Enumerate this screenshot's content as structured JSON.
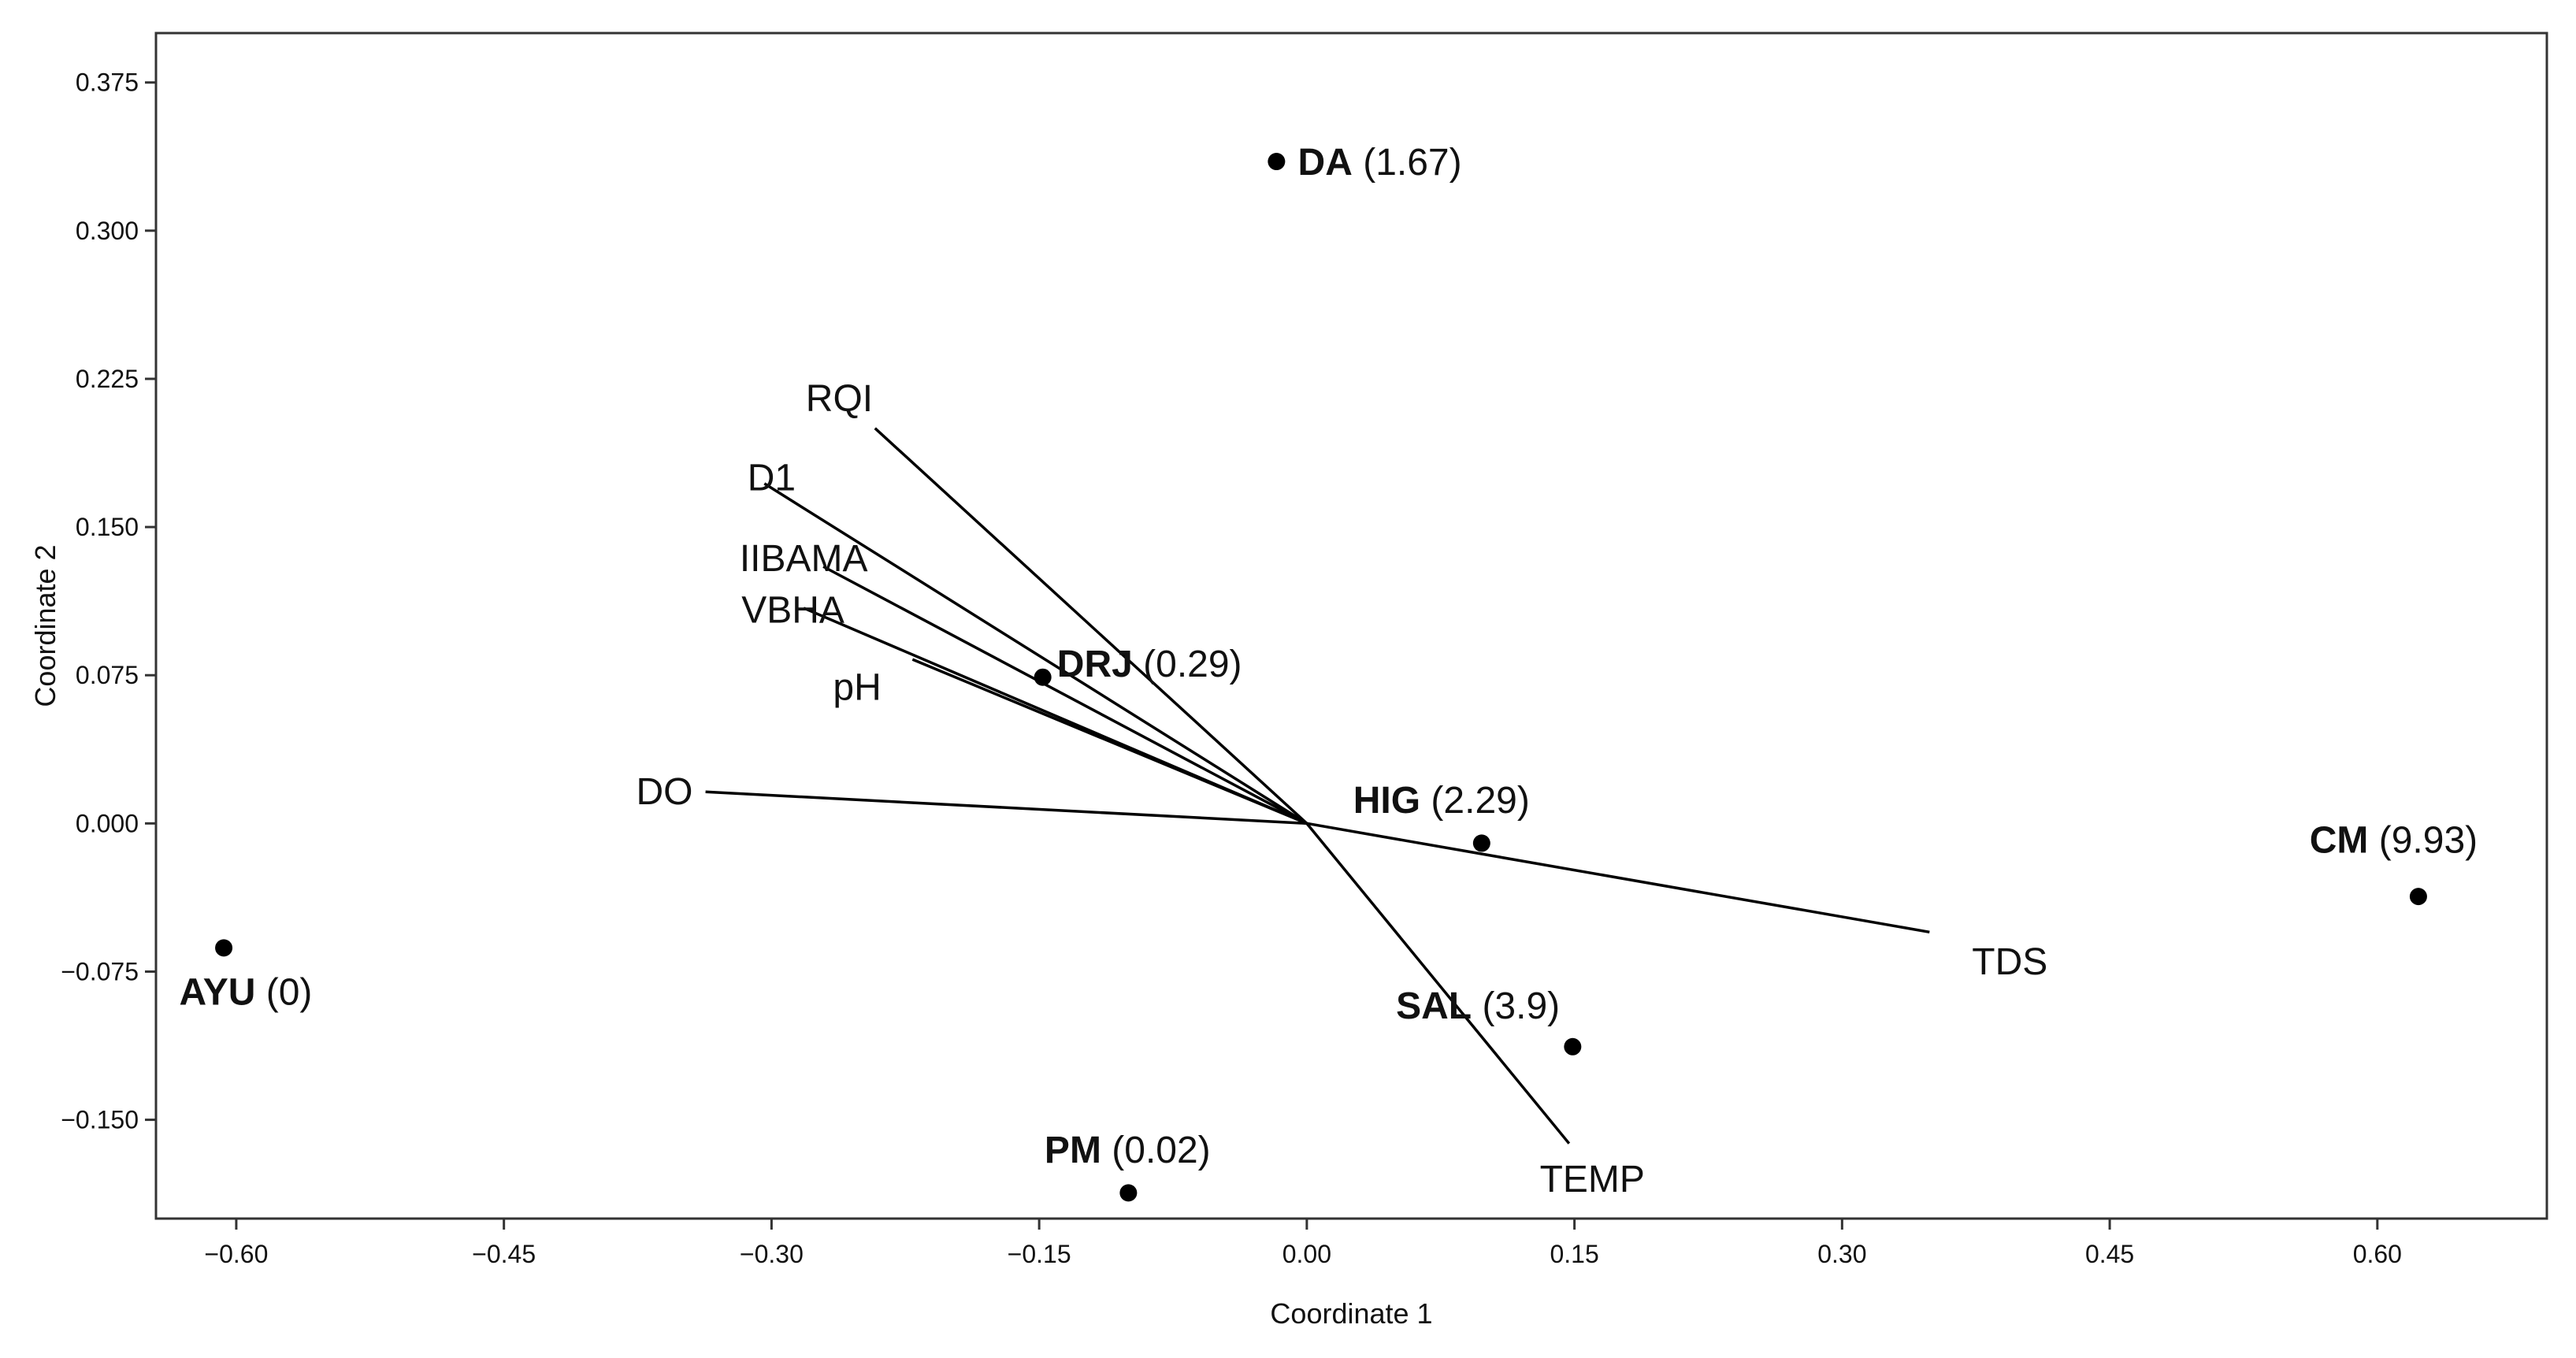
{
  "chart_data": {
    "type": "scatter",
    "subtype": "ordination-biplot",
    "title": "",
    "xlabel": "Coordinate 1",
    "ylabel": "Coordinate 2",
    "xlim": [
      -0.645,
      0.695
    ],
    "ylim": [
      -0.2,
      0.4
    ],
    "x_ticks": [
      {
        "value": -0.6,
        "label": "−0.60"
      },
      {
        "value": -0.45,
        "label": "−0.45"
      },
      {
        "value": -0.3,
        "label": "−0.30"
      },
      {
        "value": -0.15,
        "label": "−0.15"
      },
      {
        "value": 0.0,
        "label": "0.00"
      },
      {
        "value": 0.15,
        "label": "0.15"
      },
      {
        "value": 0.3,
        "label": "0.30"
      },
      {
        "value": 0.45,
        "label": "0.45"
      },
      {
        "value": 0.6,
        "label": "0.60"
      }
    ],
    "y_ticks": [
      {
        "value": 0.375,
        "label": "0.375"
      },
      {
        "value": 0.3,
        "label": "0.300"
      },
      {
        "value": 0.225,
        "label": "0.225"
      },
      {
        "value": 0.15,
        "label": "0.150"
      },
      {
        "value": 0.075,
        "label": "0.075"
      },
      {
        "value": 0.0,
        "label": "0.000"
      },
      {
        "value": -0.075,
        "label": "−0.075"
      },
      {
        "value": -0.15,
        "label": "−0.150"
      }
    ],
    "grid": false,
    "points_color": "#000000",
    "points": [
      {
        "code": "DA",
        "value_label": "(1.67)",
        "x": -0.017,
        "y": 0.335,
        "label_side": "right",
        "label_x": -0.005,
        "label_y": 0.335
      },
      {
        "code": "DRJ",
        "value_label": "(0.29)",
        "x": -0.148,
        "y": 0.074,
        "label_side": "right",
        "label_x": -0.14,
        "label_y": 0.081
      },
      {
        "code": "HIG",
        "value_label": "(2.29)",
        "x": 0.098,
        "y": -0.01,
        "label_side": "right",
        "label_x": 0.026,
        "label_y": 0.012
      },
      {
        "code": "CM",
        "value_label": "(9.93)",
        "x": 0.623,
        "y": -0.037,
        "label_side": "right",
        "label_x": 0.562,
        "label_y": -0.008
      },
      {
        "code": "AYU",
        "value_label": "(0)",
        "x": -0.607,
        "y": -0.063,
        "label_side": "right",
        "label_x": -0.632,
        "label_y": -0.085
      },
      {
        "code": "SAL",
        "value_label": "(3.9)",
        "x": 0.149,
        "y": -0.113,
        "label_side": "right",
        "label_x": 0.05,
        "label_y": -0.092
      },
      {
        "code": "PM",
        "value_label": "(0.02)",
        "x": -0.1,
        "y": -0.187,
        "label_side": "right",
        "label_x": -0.147,
        "label_y": -0.165
      }
    ],
    "vectors": [
      {
        "name": "RQI",
        "x": -0.242,
        "y": 0.2,
        "label_x": -0.262,
        "label_y": 0.215
      },
      {
        "name": "D1",
        "x": -0.304,
        "y": 0.172,
        "label_x": -0.3,
        "label_y": 0.175
      },
      {
        "name": "IIBAMA",
        "x": -0.271,
        "y": 0.13,
        "label_x": -0.282,
        "label_y": 0.134
      },
      {
        "name": "VBHA",
        "x": -0.282,
        "y": 0.109,
        "label_x": -0.288,
        "label_y": 0.108
      },
      {
        "name": "pH",
        "x": -0.221,
        "y": 0.083,
        "label_x": -0.252,
        "label_y": 0.069
      },
      {
        "name": "DO",
        "x": -0.337,
        "y": 0.016,
        "label_x": -0.36,
        "label_y": 0.016
      },
      {
        "name": "TDS",
        "x": 0.349,
        "y": -0.055,
        "label_x": 0.394,
        "label_y": -0.07
      },
      {
        "name": "TEMP",
        "x": 0.147,
        "y": -0.162,
        "label_x": 0.16,
        "label_y": -0.18
      }
    ]
  }
}
